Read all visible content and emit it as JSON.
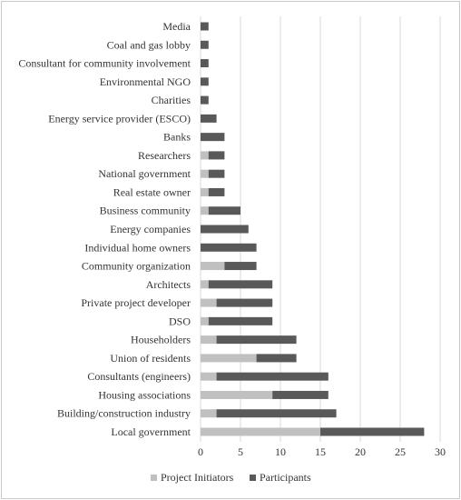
{
  "chart_data": {
    "type": "bar",
    "orientation": "horizontal",
    "stacked": true,
    "categories": [
      "Local government",
      "Building/construction industry",
      "Housing associations",
      "Consultants (engineers)",
      "Union of residents",
      "Householders",
      "DSO",
      "Private project developer",
      "Architects",
      "Community organization",
      "Individual home owners",
      "Energy companies",
      "Business community",
      "Real estate owner",
      "National government",
      "Researchers",
      "Banks",
      "Energy service provider (ESCO)",
      "Charities",
      "Environmental NGO",
      "Consultant for community involvement",
      "Coal and gas lobby",
      "Media"
    ],
    "series": [
      {
        "name": "Project Initiators",
        "color": "#c0c0c0",
        "values": [
          15,
          2,
          9,
          2,
          7,
          2,
          1,
          2,
          1,
          3,
          0,
          0,
          1,
          1,
          1,
          1,
          0,
          0,
          0,
          0,
          0,
          0,
          0
        ]
      },
      {
        "name": "Participants",
        "color": "#595959",
        "values": [
          13,
          15,
          7,
          14,
          5,
          10,
          8,
          7,
          8,
          4,
          7,
          6,
          4,
          2,
          2,
          2,
          3,
          2,
          1,
          1,
          1,
          1,
          1
        ]
      }
    ],
    "xlim": [
      0,
      30
    ],
    "xticks": [
      "0",
      "5",
      "10",
      "15",
      "20",
      "25",
      "30"
    ],
    "grid": "vertical",
    "legend": "bottom-center",
    "title": "",
    "xlabel": "",
    "ylabel": ""
  }
}
